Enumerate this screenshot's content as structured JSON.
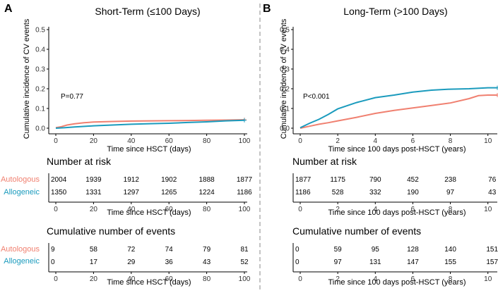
{
  "colors": {
    "autologous": "#f08070",
    "allogeneic": "#1b9bbd",
    "axis": "#000000",
    "divider": "#888888"
  },
  "chart_data": [
    {
      "panel": "A",
      "type": "line",
      "title": "Short-Term (≤100 Days)",
      "xlabel": "Time since HSCT (days)",
      "ylabel": "Cumulative incidence of CV events",
      "xlim": [
        0,
        100
      ],
      "ylim": [
        0,
        0.5
      ],
      "xticks": [
        0,
        20,
        40,
        60,
        80,
        100
      ],
      "yticks": [
        0.0,
        0.1,
        0.2,
        0.3,
        0.4,
        0.5
      ],
      "annotation": "P=0.77",
      "series": [
        {
          "name": "Autologous",
          "points": [
            [
              0,
              0.003
            ],
            [
              3,
              0.008
            ],
            [
              6,
              0.016
            ],
            [
              10,
              0.022
            ],
            [
              15,
              0.028
            ],
            [
              20,
              0.031
            ],
            [
              30,
              0.034
            ],
            [
              40,
              0.036
            ],
            [
              50,
              0.037
            ],
            [
              60,
              0.038
            ],
            [
              70,
              0.039
            ],
            [
              80,
              0.04
            ],
            [
              90,
              0.041
            ],
            [
              100,
              0.043
            ]
          ]
        },
        {
          "name": "Allogeneic",
          "points": [
            [
              0,
              0.0
            ],
            [
              5,
              0.003
            ],
            [
              10,
              0.006
            ],
            [
              20,
              0.012
            ],
            [
              30,
              0.016
            ],
            [
              40,
              0.02
            ],
            [
              50,
              0.023
            ],
            [
              60,
              0.025
            ],
            [
              70,
              0.029
            ],
            [
              80,
              0.032
            ],
            [
              90,
              0.037
            ],
            [
              100,
              0.04
            ]
          ]
        }
      ],
      "risk_table": {
        "title": "Number at risk",
        "xlabel": "Time since HSCT (days)",
        "rows": [
          {
            "name": "Autologous",
            "values": [
              "2004",
              "1939",
              "1912",
              "1902",
              "1888",
              "1877"
            ]
          },
          {
            "name": "Allogeneic",
            "values": [
              "1350",
              "1331",
              "1297",
              "1265",
              "1224",
              "1186"
            ]
          }
        ]
      },
      "events_table": {
        "title": "Cumulative number of events",
        "xlabel": "Time since HSCT (days)",
        "rows": [
          {
            "name": "Autologous",
            "values": [
              "9",
              "58",
              "72",
              "74",
              "79",
              "81"
            ]
          },
          {
            "name": "Allogeneic",
            "values": [
              "0",
              "17",
              "29",
              "36",
              "43",
              "52"
            ]
          }
        ]
      }
    },
    {
      "panel": "B",
      "type": "line",
      "title": "Long-Term (>100 Days)",
      "xlabel": "Time since 100 days post-HSCT (years)",
      "ylabel": "Cumulative incidence of CV events",
      "xlim": [
        0,
        10.5
      ],
      "ylim": [
        0,
        0.5
      ],
      "xticks": [
        0,
        2,
        4,
        6,
        8,
        10
      ],
      "yticks": [
        0.0,
        0.1,
        0.2,
        0.3,
        0.4,
        0.5
      ],
      "annotation": "P<0.001",
      "series": [
        {
          "name": "Autologous",
          "points": [
            [
              0,
              0.0
            ],
            [
              0.5,
              0.01
            ],
            [
              1,
              0.02
            ],
            [
              1.5,
              0.028
            ],
            [
              2,
              0.037
            ],
            [
              3,
              0.055
            ],
            [
              4,
              0.075
            ],
            [
              5,
              0.09
            ],
            [
              6,
              0.103
            ],
            [
              7,
              0.115
            ],
            [
              8,
              0.128
            ],
            [
              9,
              0.15
            ],
            [
              9.5,
              0.165
            ],
            [
              10,
              0.168
            ],
            [
              10.5,
              0.168
            ]
          ]
        },
        {
          "name": "Allogeneic",
          "points": [
            [
              0,
              0.002
            ],
            [
              0.5,
              0.025
            ],
            [
              1,
              0.045
            ],
            [
              1.5,
              0.07
            ],
            [
              2,
              0.098
            ],
            [
              3,
              0.13
            ],
            [
              4,
              0.155
            ],
            [
              5,
              0.168
            ],
            [
              6,
              0.183
            ],
            [
              7,
              0.193
            ],
            [
              8,
              0.198
            ],
            [
              9,
              0.2
            ],
            [
              10,
              0.205
            ],
            [
              10.5,
              0.205
            ]
          ]
        }
      ],
      "risk_table": {
        "title": "Number at risk",
        "xlabel": "Time since 100 days post-HSCT (years)",
        "rows": [
          {
            "name": "Autologous",
            "values": [
              "1877",
              "1175",
              "790",
              "452",
              "238",
              "76"
            ]
          },
          {
            "name": "Allogeneic",
            "values": [
              "1186",
              "528",
              "332",
              "190",
              "97",
              "43"
            ]
          }
        ]
      },
      "events_table": {
        "title": "Cumulative number of events",
        "xlabel": "Time since 100 days post-HSCT (years)",
        "rows": [
          {
            "name": "Autologous",
            "values": [
              "0",
              "59",
              "95",
              "128",
              "140",
              "151"
            ]
          },
          {
            "name": "Allogeneic",
            "values": [
              "0",
              "97",
              "131",
              "147",
              "155",
              "157"
            ]
          }
        ]
      }
    }
  ]
}
